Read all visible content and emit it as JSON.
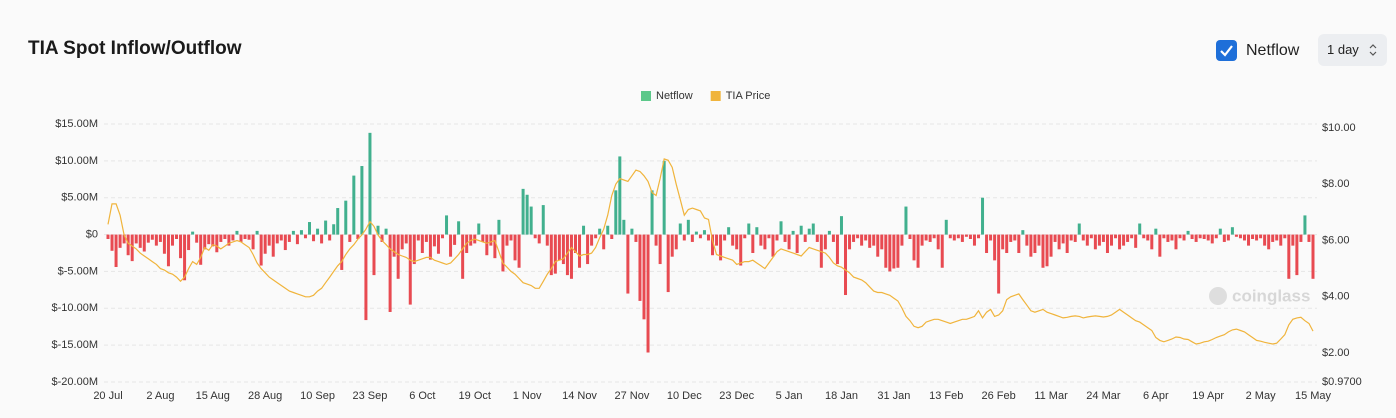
{
  "header": {
    "title": "TIA Spot Inflow/Outflow",
    "toggle_label": "Netflow",
    "interval": "1 day"
  },
  "watermark": "coinglass",
  "chart_data": {
    "type": "bar_line",
    "legend": "top",
    "grid": true,
    "categories": [
      "20 Jul",
      null,
      null,
      null,
      null,
      null,
      null,
      null,
      null,
      null,
      null,
      null,
      null,
      "2 Aug",
      null,
      null,
      null,
      null,
      null,
      null,
      null,
      null,
      null,
      null,
      null,
      null,
      "15 Aug",
      null,
      null,
      null,
      null,
      null,
      null,
      null,
      null,
      null,
      null,
      null,
      null,
      "28 Aug",
      null,
      null,
      null,
      null,
      null,
      null,
      null,
      null,
      null,
      null,
      null,
      null,
      "10 Sep",
      null,
      null,
      null,
      null,
      null,
      null,
      null,
      null,
      null,
      null,
      null,
      null,
      "23 Sep",
      null,
      null,
      null,
      null,
      null,
      null,
      null,
      null,
      null,
      null,
      null,
      null,
      "6 Oct",
      null,
      null,
      null,
      null,
      null,
      null,
      null,
      null,
      null,
      null,
      null,
      null,
      "19 Oct",
      null,
      null,
      null,
      null,
      null,
      null,
      null,
      null,
      null,
      null,
      null,
      null,
      "1 Nov",
      null,
      null,
      null,
      null,
      null,
      null,
      null,
      null,
      null,
      null,
      null,
      null,
      "14 Nov",
      null,
      null,
      null,
      null,
      null,
      null,
      null,
      null,
      null,
      null,
      null,
      null,
      "27 Nov",
      null,
      null,
      null,
      null,
      null,
      null,
      null,
      null,
      null,
      null,
      null,
      null,
      "10 Dec",
      null,
      null,
      null,
      null,
      null,
      null,
      null,
      null,
      null,
      null,
      null,
      null,
      "23 Dec",
      null,
      null,
      null,
      null,
      null,
      null,
      null,
      null,
      null,
      null,
      null,
      null,
      "5 Jan",
      null,
      null,
      null,
      null,
      null,
      null,
      null,
      null,
      null,
      null,
      null,
      null,
      "18 Jan",
      null,
      null,
      null,
      null,
      null,
      null,
      null,
      null,
      null,
      null,
      null,
      null,
      "31 Jan",
      null,
      null,
      null,
      null,
      null,
      null,
      null,
      null,
      null,
      null,
      null,
      null,
      "13 Feb",
      null,
      null,
      null,
      null,
      null,
      null,
      null,
      null,
      null,
      null,
      null,
      null,
      "26 Feb",
      null,
      null,
      null,
      null,
      null,
      null,
      null,
      null,
      null,
      null,
      null,
      null,
      "11 Mar",
      null,
      null,
      null,
      null,
      null,
      null,
      null,
      null,
      null,
      null,
      null,
      null,
      "24 Mar",
      null,
      null,
      null,
      null,
      null,
      null,
      null,
      null,
      null,
      null,
      null,
      null,
      "6 Apr",
      null,
      null,
      null,
      null,
      null,
      null,
      null,
      null,
      null,
      null,
      null,
      null,
      "19 Apr",
      null,
      null,
      null,
      null,
      null,
      null,
      null,
      null,
      null,
      null,
      null,
      null,
      "2 May",
      null,
      null,
      null,
      null,
      null,
      null,
      null,
      null,
      null,
      null,
      null,
      null,
      "15 May"
    ],
    "series": [
      {
        "name": "Netflow",
        "type": "bar",
        "color": "#41b08e",
        "negative_color": "#e84a51",
        "values": [
          -0.6,
          -2.2,
          -4.4,
          -1.8,
          -1.2,
          -2.8,
          -3.6,
          -1.2,
          -1.8,
          -2.3,
          -1.1,
          -0.7,
          -1.5,
          -1.0,
          -2.6,
          -4.3,
          -1.5,
          -0.6,
          -3.2,
          -6.2,
          -2.1,
          0.4,
          -1.1,
          -4.1,
          -2.0,
          -1.3,
          -1.6,
          -2.4,
          -1.0,
          -0.6,
          -1.5,
          -0.8,
          0.5,
          -1.0,
          -0.6,
          -0.7,
          -2.0,
          0.5,
          -4.2,
          -2.6,
          -1.5,
          -3.0,
          -1.2,
          -0.8,
          -2.1,
          -1.0,
          0.5,
          -1.3,
          0.6,
          -0.5,
          1.7,
          -0.9,
          0.8,
          -1.2,
          1.9,
          -0.8,
          1.4,
          3.6,
          -4.8,
          4.6,
          -1.0,
          8.0,
          -0.6,
          9.3,
          -11.6,
          13.8,
          -5.5,
          1.2,
          -1.0,
          0.8,
          -10.5,
          -3.0,
          -6.0,
          -2.0,
          -1.2,
          -9.5,
          -4.0,
          -0.8,
          -2.5,
          -1.0,
          -3.4,
          -1.6,
          -2.6,
          -0.5,
          2.6,
          -3.0,
          -1.4,
          1.8,
          -6.0,
          -2.5,
          -1.5,
          -1.2,
          1.5,
          -1.0,
          -2.8,
          -1.5,
          -3.2,
          2.0,
          -5.0,
          -1.5,
          -0.8,
          -3.5,
          -4.5,
          6.2,
          5.4,
          3.8,
          -0.5,
          -1.2,
          4.0,
          -1.5,
          -5.5,
          -5.3,
          -3.5,
          -4.0,
          -5.5,
          -6.0,
          -2.5,
          -4.5,
          1.2,
          -4.0,
          -1.5,
          -0.5,
          0.8,
          -2.0,
          1.2,
          -0.6,
          6.0,
          10.6,
          2.0,
          -8.0,
          0.8,
          -1.0,
          -9.0,
          -11.5,
          -16.0,
          6.0,
          -1.5,
          -4.0,
          10.0,
          -7.8,
          -3.0,
          -2.0,
          1.5,
          -0.8,
          2.0,
          -1.0,
          0.4,
          -0.5,
          0.6,
          -0.8,
          -2.8,
          -1.5,
          -3.5,
          -0.8,
          1.0,
          -1.5,
          -2.0,
          -4.2,
          -0.5,
          1.5,
          -2.5,
          1.0,
          -1.5,
          -2.0,
          -0.5,
          -3.0,
          -0.8,
          1.8,
          -1.0,
          -2.0,
          0.5,
          -2.5,
          1.2,
          -1.0,
          0.8,
          1.5,
          -1.0,
          -4.5,
          -2.0,
          0.5,
          -1.0,
          -4.0,
          2.5,
          -8.2,
          -2.0,
          -1.0,
          -0.5,
          -1.5,
          -0.8,
          -1.8,
          -1.5,
          -3.0,
          -2.0,
          -4.5,
          -5.0,
          -4.6,
          -4.5,
          -1.5,
          3.8,
          -0.6,
          -3.5,
          -4.5,
          -1.5,
          -0.8,
          -1.0,
          -0.5,
          -2.0,
          -4.5,
          2.0,
          -0.5,
          -0.8,
          -0.5,
          -1.0,
          -0.3,
          -0.6,
          -1.5,
          -0.5,
          5.0,
          -2.5,
          -0.8,
          -3.5,
          -8.0,
          -2.0,
          -2.5,
          -1.0,
          -0.8,
          -2.5,
          0.6,
          -1.5,
          -3.0,
          -2.5,
          -1.5,
          -4.5,
          -4.3,
          -3.0,
          -1.0,
          -2.0,
          -1.2,
          -2.5,
          -0.8,
          -1.0,
          1.5,
          -0.8,
          -1.5,
          -0.5,
          -2.0,
          -1.5,
          -1.0,
          -2.5,
          -1.5,
          -0.5,
          -2.0,
          -1.5,
          -1.0,
          -0.5,
          -1.8,
          1.5,
          -0.5,
          -0.8,
          -2.0,
          0.8,
          -3.0,
          -0.5,
          -1.0,
          -0.8,
          -2.0,
          -0.5,
          -0.8,
          0.5,
          -0.6,
          -1.0,
          -0.5,
          -0.6,
          -0.8,
          -1.2,
          -0.5,
          0.8,
          -1.0,
          -0.8,
          1.0,
          -0.3,
          -0.5,
          -0.8,
          -1.5,
          -0.6,
          -0.8,
          -0.5,
          -1.5,
          -2.0,
          -1.0,
          -0.8,
          -1.5,
          -0.5,
          -6.0,
          -1.5,
          -5.5,
          -1.0,
          2.6,
          -1.0,
          -6.0
        ]
      },
      {
        "name": "TIA Price",
        "type": "line",
        "axis": "y2",
        "color": "#f0b43c",
        "values": [
          6.57,
          7.3,
          7.3,
          6.9,
          6.2,
          5.9,
          5.8,
          5.7,
          5.55,
          5.45,
          5.35,
          5.25,
          5.15,
          5.0,
          4.95,
          4.85,
          4.8,
          4.7,
          4.55,
          4.7,
          5.0,
          5.25,
          5.15,
          5.4,
          5.75,
          5.65,
          5.85,
          5.8,
          5.7,
          5.8,
          5.9,
          5.95,
          6.0,
          5.95,
          5.85,
          5.75,
          5.5,
          5.2,
          5.0,
          4.85,
          4.7,
          4.6,
          4.5,
          4.4,
          4.3,
          4.2,
          4.15,
          4.1,
          4.05,
          4.0,
          4.0,
          4.05,
          4.2,
          4.3,
          4.5,
          4.7,
          4.9,
          5.1,
          5.25,
          5.5,
          5.7,
          5.85,
          6.05,
          6.2,
          6.4,
          6.67,
          6.5,
          6.2,
          6.0,
          5.85,
          5.7,
          5.6,
          5.5,
          5.45,
          5.4,
          5.3,
          5.25,
          5.3,
          5.35,
          5.4,
          5.4,
          5.3,
          5.25,
          5.2,
          5.15,
          5.2,
          5.35,
          5.5,
          5.7,
          5.9,
          6.0,
          6.05,
          6.0,
          5.95,
          5.9,
          5.95,
          6.0,
          5.6,
          5.2,
          5.05,
          4.9,
          4.8,
          4.65,
          4.5,
          4.45,
          4.4,
          4.3,
          4.3,
          4.55,
          4.8,
          5.0,
          5.25,
          5.3,
          5.35,
          5.55,
          5.75,
          5.6,
          5.45,
          5.5,
          5.5,
          5.55,
          5.75,
          6.1,
          6.4,
          6.9,
          7.6,
          8.0,
          8.2,
          8.15,
          8.1,
          8.3,
          8.5,
          8.45,
          8.3,
          8.1,
          7.7,
          7.6,
          8.2,
          8.9,
          8.85,
          8.6,
          8.0,
          7.45,
          6.9,
          7.1,
          7.15,
          7.1,
          7.05,
          6.8,
          6.75,
          6.0,
          5.5,
          5.45,
          5.4,
          5.35,
          5.3,
          5.15,
          5.2,
          5.25,
          5.25,
          5.3,
          5.2,
          5.1,
          5.0,
          5.2,
          5.4,
          5.6,
          5.7,
          5.65,
          5.6,
          5.55,
          5.5,
          5.45,
          5.6,
          5.75,
          5.7,
          5.65,
          5.6,
          5.55,
          5.4,
          5.2,
          5.1,
          5.05,
          4.95,
          4.85,
          4.7,
          4.65,
          4.6,
          4.5,
          4.35,
          4.2,
          4.15,
          4.15,
          4.1,
          4.05,
          3.95,
          3.85,
          3.6,
          3.3,
          3.15,
          2.95,
          2.9,
          2.95,
          3.1,
          3.15,
          3.2,
          3.2,
          3.15,
          3.1,
          3.05,
          3.1,
          3.15,
          3.2,
          3.2,
          3.25,
          3.3,
          3.5,
          3.25,
          3.45,
          3.55,
          3.3,
          3.35,
          3.5,
          3.9,
          4.0,
          4.05,
          4.1,
          3.9,
          3.7,
          3.5,
          3.45,
          3.5,
          3.55,
          3.45,
          3.4,
          3.35,
          3.3,
          3.25,
          3.27,
          3.3,
          3.32,
          3.3,
          3.25,
          3.28,
          3.3,
          3.32,
          3.3,
          3.28,
          3.3,
          3.35,
          3.45,
          3.55,
          3.45,
          3.35,
          3.25,
          3.15,
          3.1,
          3.0,
          2.9,
          2.8,
          2.55,
          2.45,
          2.4,
          2.45,
          2.5,
          2.57,
          2.55,
          2.5,
          2.48,
          2.4,
          2.32,
          2.35,
          2.4,
          2.42,
          2.48,
          2.55,
          2.6,
          2.65,
          2.75,
          2.82,
          2.85,
          2.8,
          2.75,
          2.65,
          2.55,
          2.45,
          2.42,
          2.38,
          2.35,
          2.32,
          2.35,
          2.5,
          2.65,
          3.0,
          3.2,
          3.25,
          3.27,
          3.15,
          3.05,
          2.78
        ]
      }
    ],
    "ylim": [
      -20,
      15
    ],
    "yticks": [
      {
        "value": 15,
        "label": "$15.00M"
      },
      {
        "value": 10,
        "label": "$10.00M"
      },
      {
        "value": 5,
        "label": "$5.00M"
      },
      {
        "value": 0,
        "label": "$0"
      },
      {
        "value": -5,
        "label": "$-5.00M"
      },
      {
        "value": -10,
        "label": "$-10.00M"
      },
      {
        "value": -15,
        "label": "$-15.00M"
      },
      {
        "value": -20,
        "label": "$-20.00M"
      }
    ],
    "y2lim": [
      0.97,
      10.14
    ],
    "y2ticks": [
      {
        "value": 10,
        "label": "$10.00"
      },
      {
        "value": 8,
        "label": "$8.00"
      },
      {
        "value": 6,
        "label": "$6.00"
      },
      {
        "value": 4,
        "label": "$4.00"
      },
      {
        "value": 2,
        "label": "$2.00"
      },
      {
        "value": 0.97,
        "label": "$0.9700"
      }
    ]
  }
}
